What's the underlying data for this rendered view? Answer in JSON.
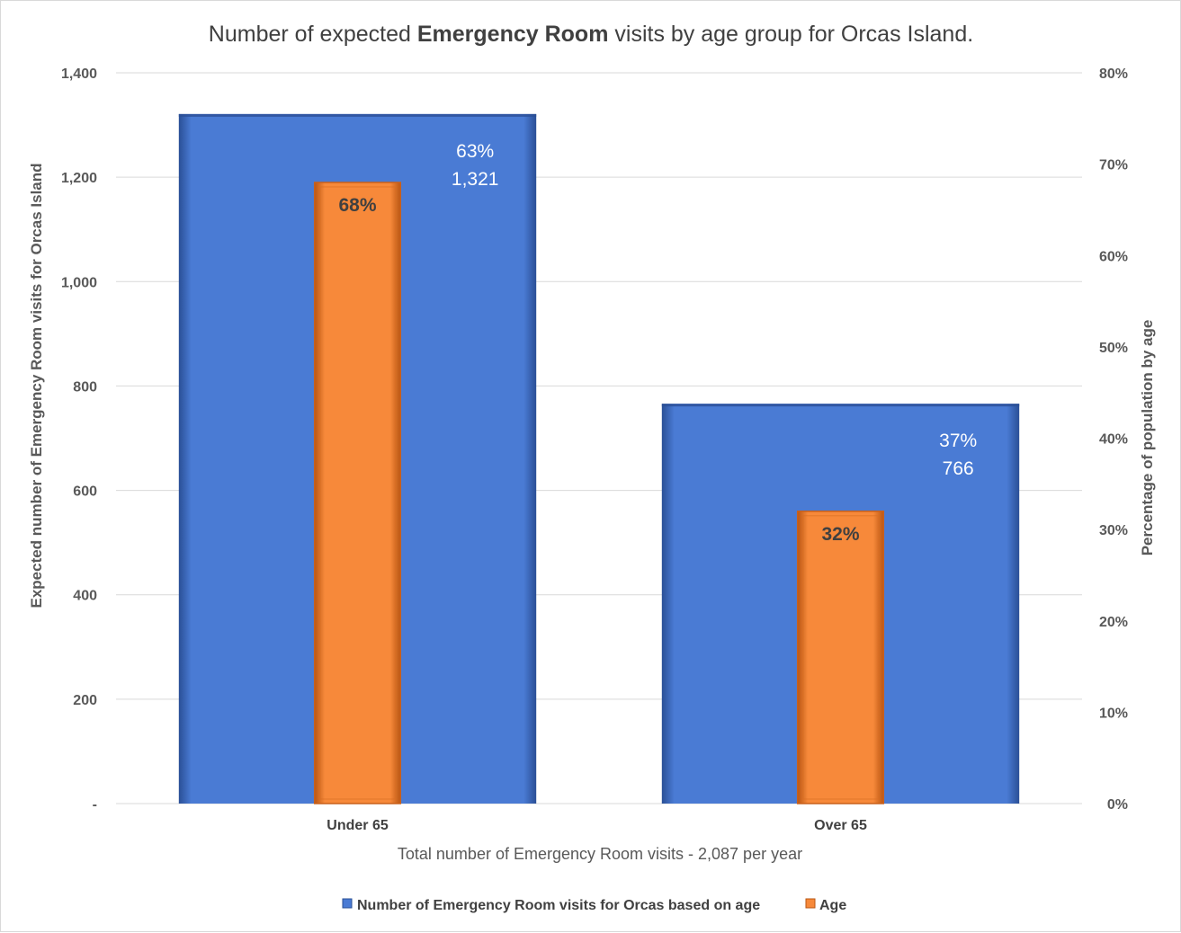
{
  "chart_data": {
    "type": "bar",
    "title": {
      "prefix": "Number of expected ",
      "bold": "Emergency Room",
      "suffix": " visits by age group for Orcas Island."
    },
    "categories": [
      "Under 65",
      "Over 65"
    ],
    "xlabel": "Total number of Emergency Room visits - 2,087 per year",
    "ylabel": "Expected number of Emergency Room visits for Orcas Island",
    "y2label": "Percentage of population by age",
    "ylim": [
      0,
      1400
    ],
    "y2lim": [
      0,
      0.8
    ],
    "yticks": [
      "-",
      "200",
      "400",
      "600",
      "800",
      "1,000",
      "1,200",
      "1,400"
    ],
    "y2ticks": [
      "0%",
      "10%",
      "20%",
      "30%",
      "40%",
      "50%",
      "60%",
      "70%",
      "80%"
    ],
    "grid": true,
    "legend_position": "bottom",
    "series": [
      {
        "name": "Number of Emergency Room visits for Orcas based on age",
        "axis": "primary",
        "color": "#4a7bd4",
        "values": [
          1321,
          766
        ],
        "share_labels": [
          "63%",
          "37%"
        ],
        "value_labels": [
          "1,321",
          "766"
        ]
      },
      {
        "name": "Age",
        "axis": "secondary",
        "color": "#f7893a",
        "values": [
          0.68,
          0.32
        ],
        "value_labels": [
          "68%",
          "32%"
        ]
      }
    ]
  }
}
